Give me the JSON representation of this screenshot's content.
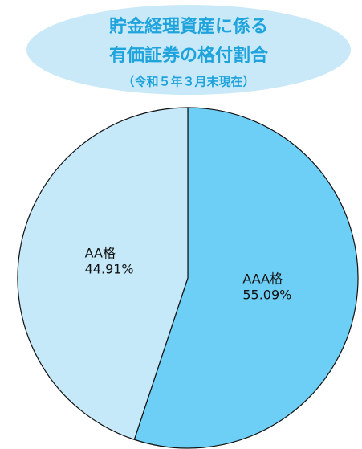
{
  "chart_data": {
    "type": "pie",
    "title_lines": [
      "貯金経理資産に係る",
      "有価証券の格付割合"
    ],
    "subtitle": "（令和５年３月末現在）",
    "categories": [
      "AAA格",
      "AA格"
    ],
    "values": [
      55.09,
      44.91
    ],
    "value_labels": [
      "55.09%",
      "44.91%"
    ],
    "colors": [
      "#6dcff6",
      "#c6e9fa"
    ]
  }
}
